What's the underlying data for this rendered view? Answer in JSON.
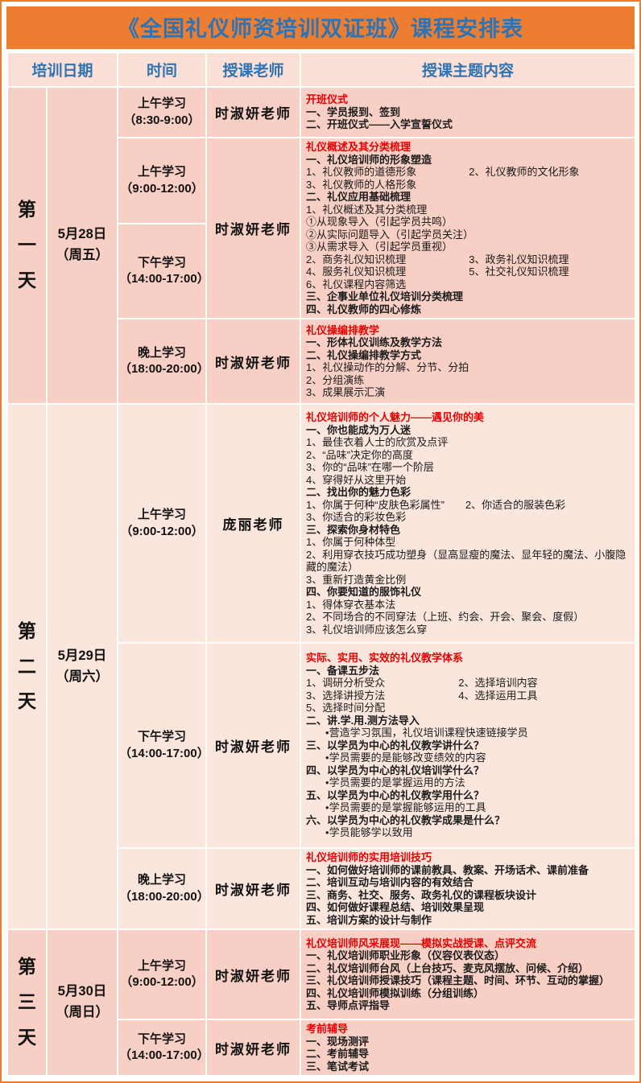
{
  "page": {
    "title": "《全国礼仪师资培训双证班》课程安排表"
  },
  "header": {
    "columns": [
      "培训日期",
      "时间",
      "授课老师",
      "授课主题内容"
    ]
  },
  "colors": {
    "accent_orange": "#ED7D31",
    "title_blue": "#2E74B5",
    "topic_red": "#E80000",
    "row_pink_dark": "#F7CFC4",
    "row_pink_light": "#FBE6DE"
  },
  "days": [
    {
      "label": "第一天",
      "date1": "5月28日",
      "date2": "（周五）",
      "sessions": [
        {
          "times": [
            {
              "label": "上午学习",
              "range": "（8:30-9:00）"
            }
          ],
          "teacher": "时淑妍老师",
          "lines": [
            {
              "style": "t",
              "text": "开班仪式"
            },
            {
              "style": "b",
              "text": "一、学员报到、签到"
            },
            {
              "style": "b",
              "text": "二、开班仪式——入学宣誓仪式"
            }
          ]
        },
        {
          "times": [
            {
              "label": "上午学习",
              "range": "（9:00-12:00）"
            },
            {
              "label": "下午学习",
              "range": "（14:00-17:00）"
            }
          ],
          "teacher": "时淑妍老师",
          "lines": [
            {
              "style": "t",
              "text": "礼仪概述及其分类梳理"
            },
            {
              "style": "b",
              "text": "一、礼仪培训师的形象塑造"
            },
            {
              "style": "n",
              "text": "1、礼仪教师的道德形象　　　　　2、礼仪教师的文化形象"
            },
            {
              "style": "n",
              "text": "3、礼仪教师的人格形象"
            },
            {
              "style": "b",
              "text": "二、礼仪应用基础梳理"
            },
            {
              "style": "n",
              "text": "1、礼仪概述及其分类梳理"
            },
            {
              "style": "n",
              "text": "①从现象导入（引起学员共鸣）"
            },
            {
              "style": "n",
              "text": "②从实际问题导入（引起学员关注）"
            },
            {
              "style": "n",
              "text": "③从需求导入（引起学员重视）"
            },
            {
              "style": "n",
              "text": "2、商务礼仪知识梳理　　　　　　3、政务礼仪知识梳理"
            },
            {
              "style": "n",
              "text": "4、服务礼仪知识梳理　　　　　　5、社交礼仪知识梳理"
            },
            {
              "style": "n",
              "text": "6、礼仪课程内容筛选"
            },
            {
              "style": "b",
              "text": "三、企事业单位礼仪培训分类梳理"
            },
            {
              "style": "b",
              "text": "四、礼仪教师的四心修炼"
            }
          ]
        },
        {
          "times": [
            {
              "label": "晚上学习",
              "range": "（18:00-20:00）"
            }
          ],
          "teacher": "时淑妍老师",
          "lines": [
            {
              "style": "t",
              "text": "礼仪操编排教学"
            },
            {
              "style": "b",
              "text": "一、形体礼仪训练及教学方法"
            },
            {
              "style": "b",
              "text": "二、礼仪操编排教学方式"
            },
            {
              "style": "n",
              "text": "1、礼仪操动作的分解、分节、分拍"
            },
            {
              "style": "n",
              "text": "2、分组演练"
            },
            {
              "style": "n",
              "text": "3、成果展示汇演"
            }
          ]
        }
      ]
    },
    {
      "label": "第二天",
      "date1": "5月29日",
      "date2": "（周六）",
      "sessions": [
        {
          "times": [
            {
              "label": "上午学习",
              "range": "（9:00-12:00）"
            }
          ],
          "teacher": "庞丽老师",
          "lines": [
            {
              "style": "t",
              "text": "礼仪培训师的个人魅力——遇见你的美"
            },
            {
              "style": "b",
              "text": "一、你也能成为万人迷"
            },
            {
              "style": "n",
              "text": "1、最佳衣着人士的欣赏及点评"
            },
            {
              "style": "n",
              "text": "2、“品味”决定你的高度"
            },
            {
              "style": "n",
              "text": "3、你的“品味”在哪一个阶层"
            },
            {
              "style": "n",
              "text": "4、穿得好从这里开始"
            },
            {
              "style": "b",
              "text": "二、找出你的魅力色彩"
            },
            {
              "style": "n",
              "text": "1、你属于何种“皮肤色彩属性”　　2、你适合的服装色彩"
            },
            {
              "style": "n",
              "text": "3、你适合的彩妆色彩"
            },
            {
              "style": "b",
              "text": "三、探索你身材特色"
            },
            {
              "style": "n",
              "text": "1、你属于何种体型"
            },
            {
              "style": "n",
              "text": "2、利用穿衣技巧成功塑身（显高显瘦的魔法、显年轻的魔法、小腹隐藏的魔法）"
            },
            {
              "style": "n",
              "text": "3、重新打造黄金比例"
            },
            {
              "style": "b",
              "text": "四、你要知道的服饰礼仪"
            },
            {
              "style": "n",
              "text": "1、得体穿衣基本法"
            },
            {
              "style": "n",
              "text": "2、不同场合的不同穿法（上班、约会、开会、聚会、度假）"
            },
            {
              "style": "n",
              "text": "3、礼仪培训师应该怎么穿"
            }
          ]
        },
        {
          "times": [
            {
              "label": "下午学习",
              "range": "（14:00-17:00）"
            }
          ],
          "teacher": "时淑妍老师",
          "lines": [
            {
              "style": "t",
              "text": "实际、实用、实效的礼仪教学体系"
            },
            {
              "style": "b",
              "text": "一、备课五步法"
            },
            {
              "style": "n",
              "text": "1、调研分析受众　　　　　　　2、选择培训内容"
            },
            {
              "style": "n",
              "text": "3、选择讲授方法　　　　　　　4、选择运用工具"
            },
            {
              "style": "n",
              "text": "5、选择时间分配"
            },
            {
              "style": "b",
              "text": "二、讲.学.用.测方法导入"
            },
            {
              "style": "u",
              "text": "•营造学习氛围，礼仪培训课程快速链接学员"
            },
            {
              "style": "b",
              "text": "三、以学员为中心的礼仪教学讲什么？"
            },
            {
              "style": "u",
              "text": "•学员需要的是能够改变绩效的内容"
            },
            {
              "style": "b",
              "text": "四、以学员为中心的礼仪培训学什么？"
            },
            {
              "style": "u",
              "text": "•学员需要的是掌握运用的方法"
            },
            {
              "style": "b",
              "text": "五、以学员为中心的礼仪教学用什么？"
            },
            {
              "style": "u",
              "text": "•学员需要的是掌握能够运用的工具"
            },
            {
              "style": "b",
              "text": "六、以学员为中心的礼仪教学成果是什么？"
            },
            {
              "style": "u",
              "text": "•学员能够学以致用"
            }
          ]
        },
        {
          "times": [
            {
              "label": "晚上学习",
              "range": "（18:00-20:00）"
            }
          ],
          "teacher": "时淑妍老师",
          "lines": [
            {
              "style": "t",
              "text": "礼仪培训师的实用培训技巧"
            },
            {
              "style": "b",
              "text": "一、如何做好培训师的课前教具、教案、开场话术、课前准备"
            },
            {
              "style": "b",
              "text": "二、培训互动与培训内容的有效结合"
            },
            {
              "style": "b",
              "text": "三、商务、社交、服务、政务礼仪的课程板块设计"
            },
            {
              "style": "b",
              "text": "四、如何做好课程总结、培训效果呈现"
            },
            {
              "style": "b",
              "text": "五、培训方案的设计与制作"
            }
          ]
        }
      ]
    },
    {
      "label": "第三天",
      "date1": "5月30日",
      "date2": "（周日）",
      "sessions": [
        {
          "times": [
            {
              "label": "上午学习",
              "range": "（9:00-12:00）"
            }
          ],
          "teacher": "时淑妍老师",
          "lines": [
            {
              "style": "t",
              "text": "礼仪培训师风采展现——模拟实战授课、点评交流"
            },
            {
              "style": "b",
              "text": "一、礼仪培训师职业形象（仪容仪表仪态）"
            },
            {
              "style": "b",
              "text": "二、礼仪培训师台风（上台技巧、麦克风摆放、问候、介绍）"
            },
            {
              "style": "b",
              "text": "三、礼仪培训师授课技巧（课程主题、时间、环节、互动的掌握）"
            },
            {
              "style": "b",
              "text": "四、礼仪培训师模拟训练（分组训练）"
            },
            {
              "style": "b",
              "text": "五、导师点评指导"
            }
          ]
        },
        {
          "times": [
            {
              "label": "下午学习",
              "range": "（14:00-17:00）"
            }
          ],
          "teacher": "时淑妍老师",
          "lines": [
            {
              "style": "t",
              "text": "考前辅导"
            },
            {
              "style": "b",
              "text": "一、现场测评"
            },
            {
              "style": "b",
              "text": "二、考前辅导"
            },
            {
              "style": "b",
              "text": "三、笔试考试"
            }
          ]
        }
      ]
    }
  ]
}
